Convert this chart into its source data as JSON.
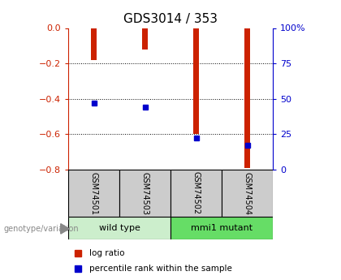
{
  "title": "GDS3014 / 353",
  "samples": [
    "GSM74501",
    "GSM74503",
    "GSM74502",
    "GSM74504"
  ],
  "log_ratios": [
    -0.18,
    -0.12,
    -0.6,
    -0.79
  ],
  "percentile_ranks": [
    47,
    44,
    22,
    17
  ],
  "groups": [
    {
      "label": "wild type",
      "indices": [
        0,
        1
      ],
      "color": "#cceecc"
    },
    {
      "label": "mmi1 mutant",
      "indices": [
        2,
        3
      ],
      "color": "#66dd66"
    }
  ],
  "bar_color": "#cc2200",
  "percentile_color": "#0000cc",
  "ylim_left": [
    -0.8,
    0.0
  ],
  "ylim_right": [
    0,
    100
  ],
  "yticks_left": [
    0,
    -0.2,
    -0.4,
    -0.6,
    -0.8
  ],
  "yticks_right": [
    0,
    25,
    50,
    75,
    100
  ],
  "yticklabels_right": [
    "0",
    "25",
    "50",
    "75",
    "100%"
  ],
  "left_axis_color": "#cc2200",
  "right_axis_color": "#0000cc",
  "label_box_color": "#cccccc",
  "title_fontsize": 11,
  "bar_width": 0.12
}
